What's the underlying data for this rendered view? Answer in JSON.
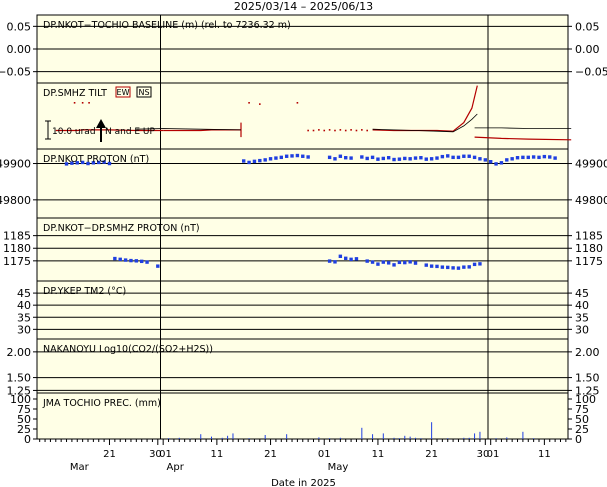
{
  "title": "2025/03/14 – 2025/06/13",
  "xlabel": "Date in 2025",
  "x_ticks": [
    {
      "day": 7,
      "label": "21"
    },
    {
      "day": 16,
      "label": "30"
    },
    {
      "day": 17,
      "label": "01"
    },
    {
      "day": 27,
      "label": "11"
    },
    {
      "day": 37,
      "label": "21"
    },
    {
      "day": 47,
      "label": "01"
    },
    {
      "day": 57,
      "label": "11"
    },
    {
      "day": 67,
      "label": "21"
    },
    {
      "day": 77,
      "label": "30"
    },
    {
      "day": 78,
      "label": "01"
    },
    {
      "day": 88,
      "label": "11"
    }
  ],
  "month_labels": [
    {
      "day": 0,
      "label": "Mar"
    },
    {
      "day": 18,
      "label": "Apr"
    },
    {
      "day": 48,
      "label": "May"
    }
  ],
  "colors": {
    "background": "#ffffe6",
    "tilt": "#b40000",
    "proton": "#1f3fe0",
    "precip": "#1f3fe0"
  },
  "tilt_scale_label": "10.0 urad",
  "tilt_arrow_label": "N and E UP",
  "tilt_badges": [
    "EW",
    "NS"
  ],
  "chart_data": [
    {
      "type": "line",
      "title": "DP.NKOT−TOCHIO BASELINE (m) (rel. to 7236.32 m)",
      "ylim": [
        -0.075,
        0.075
      ],
      "y_ticks": [
        {
          "v": 0.05,
          "label": "0.05"
        },
        {
          "v": 0.0,
          "label": "0.00"
        },
        {
          "v": -0.05,
          "label": "−0.05"
        }
      ],
      "series": []
    },
    {
      "type": "line",
      "title": "DP.SMHZ TILT",
      "series": [
        {
          "name": "EW",
          "segments": [
            [
              [
                -3.0,
                0.72
              ],
              [
                1.0,
                0.72
              ],
              [
                2.0,
                0.71
              ],
              [
                7.0,
                0.71
              ],
              [
                12.0,
                0.72
              ],
              [
                17.0,
                0.72
              ]
            ],
            [
              [
                17.0,
                0.72
              ],
              [
                24.0,
                0.72
              ],
              [
                26.0,
                0.71
              ],
              [
                31.5,
                0.71
              ]
            ],
            [
              [
                31.5,
                0.6
              ],
              [
                31.5,
                0.82
              ]
            ],
            [
              [
                56.0,
                0.71
              ],
              [
                60.0,
                0.72
              ],
              [
                64.0,
                0.72
              ],
              [
                68.0,
                0.72
              ],
              [
                71.0,
                0.73
              ],
              [
                73.0,
                0.6
              ],
              [
                74.5,
                0.38
              ],
              [
                75.5,
                0.04
              ]
            ],
            [
              [
                75.0,
                0.82
              ],
              [
                80.0,
                0.84
              ],
              [
                85.0,
                0.85
              ],
              [
                93.0,
                0.86
              ]
            ]
          ]
        },
        {
          "name": "NS",
          "segments": [
            [
              [
                12.0,
                0.7
              ],
              [
                17.0,
                0.69
              ],
              [
                24.0,
                0.7
              ],
              [
                31.5,
                0.71
              ]
            ],
            [
              [
                56.0,
                0.7
              ],
              [
                60.0,
                0.71
              ],
              [
                64.0,
                0.72
              ],
              [
                68.0,
                0.73
              ],
              [
                71.0,
                0.74
              ],
              [
                73.0,
                0.65
              ],
              [
                74.5,
                0.55
              ],
              [
                75.5,
                0.47
              ]
            ],
            [
              [
                75.0,
                0.68
              ],
              [
                80.0,
                0.68
              ],
              [
                85.0,
                0.69
              ],
              [
                93.0,
                0.69
              ]
            ]
          ]
        },
        {
          "name": "EW-points",
          "points": [
            [
              0.5,
              0.3
            ],
            [
              2.0,
              0.3
            ],
            [
              3.2,
              0.3
            ],
            [
              33.0,
              0.3
            ],
            [
              35.0,
              0.32
            ],
            [
              42.0,
              0.3
            ],
            [
              44.0,
              0.72
            ],
            [
              45.0,
              0.72
            ],
            [
              46.0,
              0.71
            ],
            [
              47.0,
              0.72
            ],
            [
              48.0,
              0.71
            ],
            [
              49.0,
              0.72
            ],
            [
              50.0,
              0.71
            ],
            [
              51.0,
              0.72
            ],
            [
              52.0,
              0.71
            ],
            [
              53.0,
              0.72
            ],
            [
              54.0,
              0.71
            ],
            [
              55.0,
              0.72
            ]
          ]
        }
      ]
    },
    {
      "type": "scatter",
      "title": "DP.NKOT PROTON (nT)",
      "ylim": [
        49750,
        49940
      ],
      "y_ticks": [
        {
          "v": 49900,
          "label": "49900"
        },
        {
          "v": 49800,
          "label": "49800"
        }
      ],
      "series": [
        {
          "name": "",
          "points": [
            [
              -1.0,
              49899
            ],
            [
              0.0,
              49901
            ],
            [
              1.0,
              49902
            ],
            [
              2.0,
              49903
            ],
            [
              3.0,
              49900
            ],
            [
              4.0,
              49902
            ],
            [
              5.0,
              49903
            ],
            [
              6.0,
              49904
            ],
            [
              7.0,
              49900
            ],
            [
              32.0,
              49907
            ],
            [
              33.0,
              49903
            ],
            [
              34.0,
              49906
            ],
            [
              35.0,
              49908
            ],
            [
              36.0,
              49910
            ],
            [
              37.0,
              49913
            ],
            [
              38.0,
              49915
            ],
            [
              39.0,
              49917
            ],
            [
              40.0,
              49920
            ],
            [
              41.0,
              49921
            ],
            [
              42.0,
              49922
            ],
            [
              43.0,
              49920
            ],
            [
              44.0,
              49918
            ],
            [
              48.0,
              49917
            ],
            [
              49.0,
              49913
            ],
            [
              50.0,
              49920
            ],
            [
              51.0,
              49916
            ],
            [
              52.0,
              49915
            ],
            [
              54.0,
              49918
            ],
            [
              55.0,
              49914
            ],
            [
              56.0,
              49917
            ],
            [
              57.0,
              49912
            ],
            [
              58.0,
              49914
            ],
            [
              59.0,
              49916
            ],
            [
              60.0,
              49911
            ],
            [
              61.0,
              49912
            ],
            [
              62.0,
              49914
            ],
            [
              63.0,
              49913
            ],
            [
              64.0,
              49915
            ],
            [
              65.0,
              49916
            ],
            [
              66.0,
              49912
            ],
            [
              67.0,
              49913
            ],
            [
              68.0,
              49915
            ],
            [
              69.0,
              49919
            ],
            [
              70.0,
              49921
            ],
            [
              71.0,
              49917
            ],
            [
              72.0,
              49917
            ],
            [
              73.0,
              49920
            ],
            [
              74.0,
              49920
            ],
            [
              75.0,
              49917
            ],
            [
              76.0,
              49913
            ],
            [
              77.0,
              49910
            ],
            [
              78.0,
              49905
            ],
            [
              79.0,
              49899
            ],
            [
              80.0,
              49902
            ],
            [
              81.0,
              49910
            ],
            [
              82.0,
              49913
            ],
            [
              83.0,
              49916
            ],
            [
              84.0,
              49917
            ],
            [
              85.0,
              49917
            ],
            [
              86.0,
              49918
            ],
            [
              87.0,
              49917
            ],
            [
              88.0,
              49919
            ],
            [
              89.0,
              49918
            ],
            [
              90.0,
              49915
            ]
          ]
        }
      ]
    },
    {
      "type": "scatter",
      "title": "DP.NKOT−DP.SMHZ PROTON (nT)",
      "ylim": [
        1167,
        1192
      ],
      "y_ticks": [
        {
          "v": 1185,
          "label": "1185"
        },
        {
          "v": 1180,
          "label": "1180"
        },
        {
          "v": 1175,
          "label": "1175"
        }
      ],
      "series": [
        {
          "name": "",
          "points": [
            [
              8.0,
              1175.9
            ],
            [
              9.0,
              1175.6
            ],
            [
              10.0,
              1175.3
            ],
            [
              11.0,
              1175.1
            ],
            [
              12.0,
              1175.0
            ],
            [
              13.0,
              1174.8
            ],
            [
              14.0,
              1174.5
            ],
            [
              16.0,
              1172.9
            ],
            [
              48.0,
              1174.9
            ],
            [
              49.0,
              1174.6
            ],
            [
              50.0,
              1176.8
            ],
            [
              51.0,
              1176.0
            ],
            [
              52.0,
              1175.6
            ],
            [
              53.0,
              1175.8
            ],
            [
              55.0,
              1174.9
            ],
            [
              56.0,
              1174.5
            ],
            [
              57.0,
              1173.7
            ],
            [
              58.0,
              1174.5
            ],
            [
              59.0,
              1174.2
            ],
            [
              60.0,
              1173.4
            ],
            [
              61.0,
              1174.4
            ],
            [
              62.0,
              1174.3
            ],
            [
              63.0,
              1174.6
            ],
            [
              64.0,
              1174.1
            ],
            [
              66.0,
              1173.3
            ],
            [
              67.0,
              1172.9
            ],
            [
              68.0,
              1172.8
            ],
            [
              69.0,
              1172.5
            ],
            [
              70.0,
              1172.4
            ],
            [
              71.0,
              1172.2
            ],
            [
              72.0,
              1172.1
            ],
            [
              73.0,
              1172.5
            ],
            [
              74.0,
              1172.6
            ],
            [
              75.0,
              1173.6
            ],
            [
              76.0,
              1173.8
            ]
          ]
        }
      ]
    },
    {
      "type": "line",
      "title": "DP.YKEP TM2 (°C)",
      "ylim": [
        26,
        50
      ],
      "y_ticks": [
        {
          "v": 45,
          "label": "45"
        },
        {
          "v": 40,
          "label": "40"
        },
        {
          "v": 35,
          "label": "35"
        },
        {
          "v": 30,
          "label": "30"
        }
      ],
      "series": []
    },
    {
      "type": "line",
      "title": "NAKANOYU Log10(CO2/(SO2+H2S))",
      "ylim": [
        1.2,
        2.25
      ],
      "y_ticks": [
        {
          "v": 2.0,
          "label": "2.00"
        },
        {
          "v": 1.5,
          "label": "1.50"
        },
        {
          "v": 1.25,
          "label": "1.25"
        }
      ],
      "series": []
    },
    {
      "type": "bar",
      "title": "JMA TOCHIO PREC. (mm)",
      "ylim": [
        0,
        115
      ],
      "y_ticks": [
        {
          "v": 100,
          "label": "100"
        },
        {
          "v": 75,
          "label": "75"
        },
        {
          "v": 50,
          "label": "50"
        },
        {
          "v": 25,
          "label": "25"
        },
        {
          "v": 0,
          "label": "0"
        }
      ],
      "series": [
        {
          "name": "",
          "points": [
            [
              18,
              2
            ],
            [
              20,
              3
            ],
            [
              22,
              1
            ],
            [
              24,
              12
            ],
            [
              26,
              6
            ],
            [
              28,
              3
            ],
            [
              29,
              8
            ],
            [
              30,
              14
            ],
            [
              33,
              2
            ],
            [
              36,
              10
            ],
            [
              40,
              12
            ],
            [
              46,
              4
            ],
            [
              48,
              2
            ],
            [
              50,
              3
            ],
            [
              54,
              28
            ],
            [
              56,
              12
            ],
            [
              58,
              14
            ],
            [
              60,
              3
            ],
            [
              61,
              2
            ],
            [
              62,
              8
            ],
            [
              63,
              6
            ],
            [
              64,
              3
            ],
            [
              65,
              2
            ],
            [
              67,
              42
            ],
            [
              70,
              2
            ],
            [
              73,
              3
            ],
            [
              74,
              3
            ],
            [
              75,
              14
            ],
            [
              76,
              18
            ],
            [
              79,
              2
            ],
            [
              81,
              4
            ],
            [
              84,
              18
            ],
            [
              86,
              2
            ]
          ]
        }
      ]
    }
  ]
}
